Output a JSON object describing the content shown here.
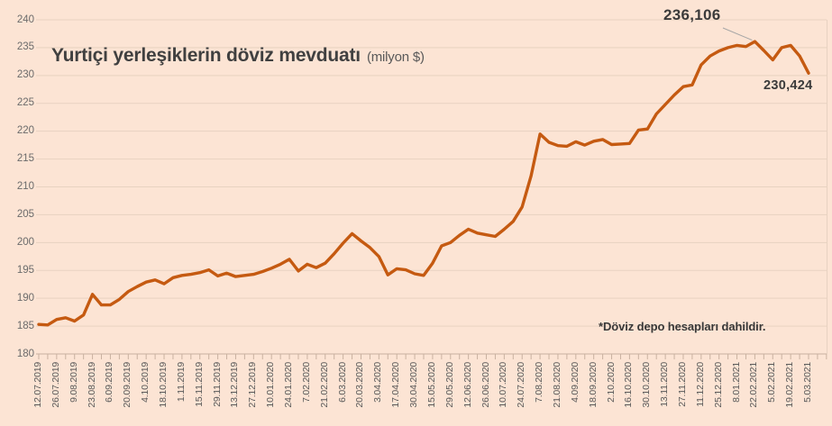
{
  "title": {
    "text": "Yurtiçi yerleşiklerin döviz mevduatı",
    "unit": "(milyon $)"
  },
  "footnote": "*Döviz depo hesapları dahildir.",
  "annotations": {
    "peak_label": "236,106",
    "last_label": "230,424"
  },
  "colors": {
    "background": "#fce4d4",
    "line": "#c55a11",
    "grid": "#e8d2c1",
    "axis": "#c9b1a0",
    "axis_text": "#595959",
    "title_text": "#404040",
    "annotation_text": "#3b3b3b",
    "leader": "#a6a6a6"
  },
  "chart_data": {
    "type": "line",
    "title": "Yurtiçi yerleşiklerin döviz mevduatı (milyon $)",
    "ylim": [
      180,
      240
    ],
    "ytick_step": 5,
    "y_ticks": [
      240,
      235,
      230,
      225,
      220,
      215,
      210,
      205,
      200,
      195,
      190,
      185,
      180
    ],
    "grid": "horizontal",
    "legend": "none",
    "label_every_nth_point": 2,
    "x_labels": [
      "12.07.2019",
      "26.07.2019",
      "9.08.2019",
      "23.08.2019",
      "6.09.2019",
      "20.09.2019",
      "4.10.2019",
      "18.10.2019",
      "1.11.2019",
      "15.11.2019",
      "29.11.2019",
      "13.12.2019",
      "27.12.2019",
      "10.01.2020",
      "24.01.2020",
      "7.02.2020",
      "21.02.2020",
      "6.03.2020",
      "20.03.2020",
      "3.04.2020",
      "17.04.2020",
      "30.04.2020",
      "15.05.2020",
      "29.05.2020",
      "12.06.2020",
      "26.06.2020",
      "10.07.2020",
      "24.07.2020",
      "7.08.2020",
      "21.08.2020",
      "4.09.2020",
      "18.09.2020",
      "2.10.2020",
      "16.10.2020",
      "30.10.2020",
      "13.11.2020",
      "27.11.2020",
      "11.12.2020",
      "25.12.2020",
      "8.01.2021",
      "22.02.2021",
      "5.02.2021",
      "19.02.2021",
      "5.03.2021"
    ],
    "values": [
      185.3,
      185.2,
      186.2,
      186.5,
      185.9,
      187.0,
      190.7,
      188.8,
      188.8,
      189.8,
      191.2,
      192.1,
      192.9,
      193.3,
      192.6,
      193.7,
      194.1,
      194.3,
      194.6,
      195.1,
      194.0,
      194.5,
      193.9,
      194.1,
      194.3,
      194.8,
      195.4,
      196.1,
      197.0,
      194.9,
      196.1,
      195.5,
      196.3,
      198.0,
      199.9,
      201.6,
      200.3,
      199.1,
      197.5,
      194.2,
      195.3,
      195.1,
      194.4,
      194.1,
      196.3,
      199.4,
      200.0,
      201.3,
      202.4,
      201.7,
      201.4,
      201.1,
      202.4,
      203.8,
      206.4,
      212.0,
      219.5,
      218.0,
      217.4,
      217.3,
      218.1,
      217.5,
      218.2,
      218.5,
      217.6,
      217.7,
      217.8,
      220.2,
      220.4,
      223.1,
      224.8,
      226.5,
      228.0,
      228.3,
      231.9,
      233.5,
      234.4,
      235.0,
      235.4,
      235.2,
      236.106,
      234.5,
      232.8,
      235.0,
      235.4,
      233.5,
      230.424
    ],
    "annotations": [
      {
        "label": "236,106",
        "point_index": 80
      },
      {
        "label": "230,424",
        "point_index": 86
      }
    ]
  }
}
